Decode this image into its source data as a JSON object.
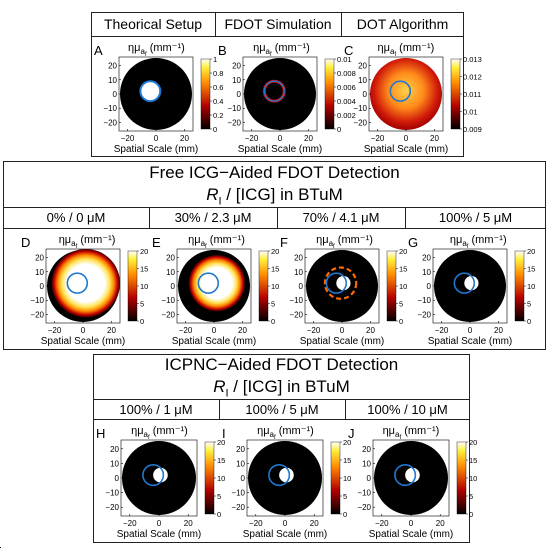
{
  "top_headers": [
    "Theorical Setup",
    "FDOT Simulation",
    "DOT Algorithm"
  ],
  "free_section": {
    "title": "Free ICG−Aided FDOT Detection",
    "subtitle_italic": "R",
    "subtitle_sub": "I",
    "subtitle_rest": " / [ICG] in BTuM",
    "columns": [
      "0% / 0 μM",
      "30% / 2.3 μM",
      "70% / 4.1 μM",
      "100% / 5 μM"
    ]
  },
  "icpnc_section": {
    "title": "ICPNC−Aided FDOT Detection",
    "subtitle_italic": "R",
    "subtitle_sub": "I",
    "subtitle_rest": " / [ICG] in BTuM",
    "columns": [
      "100% / 1 μM",
      "100% / 5 μM",
      "100% / 10 μM"
    ]
  },
  "panel_title_main": "ημ",
  "panel_title_sub": "a",
  "panel_title_subsub": "f",
  "panel_title_unit": " (mm⁻¹)",
  "xlabel": "Spatial Scale (mm)",
  "xticks": [
    "−20",
    "0",
    "20"
  ],
  "yticks": [
    "20",
    "10",
    "0",
    "−10",
    "−20"
  ],
  "panels": [
    {
      "letter": "A",
      "cbar_ticks": [
        "1",
        "0.8",
        "0.6",
        "0.4",
        "0.2",
        "0"
      ],
      "cbar_range": [
        0,
        1
      ]
    },
    {
      "letter": "B",
      "cbar_ticks": [
        "0.01",
        "0.008",
        "0.006",
        "0.004",
        "0.002",
        "0"
      ],
      "cbar_range": [
        0,
        0.01
      ]
    },
    {
      "letter": "C",
      "cbar_ticks": [
        "0.013",
        "0.012",
        "0.011",
        "0.01",
        "0.009"
      ],
      "cbar_range": [
        0.009,
        0.013
      ]
    },
    {
      "letter": "D",
      "cbar_ticks": [
        "20",
        "15",
        "10",
        "5",
        "0"
      ],
      "cbar_range": [
        0,
        20
      ]
    },
    {
      "letter": "E",
      "cbar_ticks": [
        "20",
        "15",
        "10",
        "5",
        "0"
      ],
      "cbar_range": [
        0,
        20
      ]
    },
    {
      "letter": "F",
      "cbar_ticks": [
        "20",
        "15",
        "10",
        "5",
        "0"
      ],
      "cbar_range": [
        0,
        20
      ]
    },
    {
      "letter": "G",
      "cbar_ticks": [
        "20",
        "15",
        "10",
        "5",
        "0"
      ],
      "cbar_range": [
        0,
        20
      ]
    },
    {
      "letter": "H",
      "cbar_ticks": [
        "20",
        "15",
        "10",
        "5",
        "0"
      ],
      "cbar_range": [
        0,
        20
      ]
    },
    {
      "letter": "I",
      "cbar_ticks": [
        "20",
        "15",
        "10",
        "5",
        "0"
      ],
      "cbar_range": [
        0,
        20
      ]
    },
    {
      "letter": "J",
      "cbar_ticks": [
        "20",
        "15",
        "10",
        "5",
        "0"
      ],
      "cbar_range": [
        0,
        20
      ]
    }
  ],
  "colors": {
    "disk": "#000000",
    "ring": "#1f78d1",
    "border": "#222222"
  }
}
